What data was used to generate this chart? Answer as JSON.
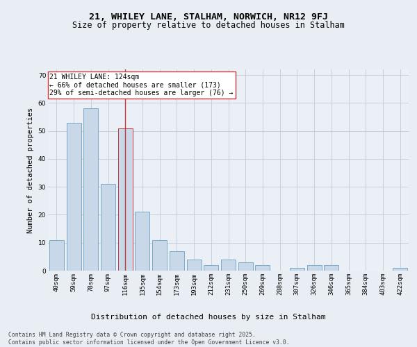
{
  "title": "21, WHILEY LANE, STALHAM, NORWICH, NR12 9FJ",
  "subtitle": "Size of property relative to detached houses in Stalham",
  "xlabel": "Distribution of detached houses by size in Stalham",
  "ylabel": "Number of detached properties",
  "categories": [
    "40sqm",
    "59sqm",
    "78sqm",
    "97sqm",
    "116sqm",
    "135sqm",
    "154sqm",
    "173sqm",
    "193sqm",
    "212sqm",
    "231sqm",
    "250sqm",
    "269sqm",
    "288sqm",
    "307sqm",
    "326sqm",
    "346sqm",
    "365sqm",
    "384sqm",
    "403sqm",
    "422sqm"
  ],
  "values": [
    11,
    53,
    58,
    31,
    51,
    21,
    11,
    7,
    4,
    2,
    4,
    3,
    2,
    0,
    1,
    2,
    2,
    0,
    0,
    0,
    1
  ],
  "bar_color": "#c8d8e8",
  "bar_edge_color": "#7aaac8",
  "highlight_index": 4,
  "highlight_edge_color": "#c8383a",
  "vertical_line_color": "#c8383a",
  "annotation_text": "21 WHILEY LANE: 124sqm\n← 66% of detached houses are smaller (173)\n29% of semi-detached houses are larger (76) →",
  "annotation_box_color": "#ffffff",
  "annotation_box_edge": "#c8383a",
  "ylim": [
    0,
    72
  ],
  "yticks": [
    0,
    10,
    20,
    30,
    40,
    50,
    60,
    70
  ],
  "bg_color": "#e8eef4",
  "plot_bg_color": "#eaf0f6",
  "grid_color": "#c0ccd8",
  "footnote": "Contains HM Land Registry data © Crown copyright and database right 2025.\nContains public sector information licensed under the Open Government Licence v3.0.",
  "title_fontsize": 9.5,
  "subtitle_fontsize": 8.5,
  "xlabel_fontsize": 8,
  "ylabel_fontsize": 7.5,
  "tick_fontsize": 6.5,
  "annotation_fontsize": 7,
  "footnote_fontsize": 5.8
}
